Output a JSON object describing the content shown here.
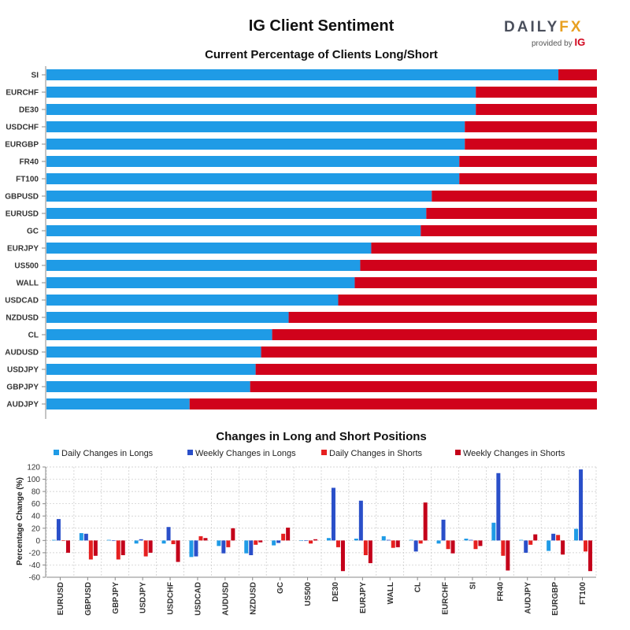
{
  "header": {
    "title": "IG Client Sentiment",
    "brand_main": "DAILY",
    "brand_accent": "FX",
    "brand_provided": "provided by",
    "brand_ig": "IG"
  },
  "colors": {
    "long": "#1f9be6",
    "short": "#d0021b",
    "daily_long": "#1f9be6",
    "weekly_long": "#2a4fc9",
    "daily_short": "#e62020",
    "weekly_short": "#c4001a"
  },
  "chart_data": [
    {
      "type": "bar",
      "orientation": "horizontal-stacked",
      "title": "Current Percentage of Clients Long/Short",
      "categories": [
        "SI",
        "EURCHF",
        "DE30",
        "USDCHF",
        "EURGBP",
        "FR40",
        "FT100",
        "GBPUSD",
        "EURUSD",
        "GC",
        "EURJPY",
        "US500",
        "WALL",
        "USDCAD",
        "NZDUSD",
        "CL",
        "AUDUSD",
        "USDJPY",
        "GBPJPY",
        "AUDJPY"
      ],
      "series": [
        {
          "name": "Long",
          "values": [
            93,
            78,
            78,
            76,
            76,
            75,
            75,
            70,
            69,
            68,
            59,
            57,
            56,
            53,
            44,
            41,
            39,
            38,
            37,
            26
          ]
        },
        {
          "name": "Short",
          "values": [
            7,
            22,
            22,
            24,
            24,
            25,
            25,
            30,
            31,
            32,
            41,
            43,
            44,
            47,
            56,
            59,
            61,
            62,
            63,
            74
          ]
        }
      ],
      "xlim": [
        0,
        100
      ]
    },
    {
      "type": "bar",
      "title": "Changes in Long and Short Positions",
      "ylabel": "Percentage Change (%)",
      "ylim": [
        -60,
        120
      ],
      "yticks": [
        -60,
        -40,
        -20,
        0,
        20,
        40,
        60,
        80,
        100,
        120
      ],
      "categories": [
        "EURUSD",
        "GBPUSD",
        "GBPJPY",
        "USDJPY",
        "USDCHF",
        "USDCAD",
        "AUDUSD",
        "NZDUSD",
        "GC",
        "US500",
        "DE30",
        "EURJPY",
        "WALL",
        "CL",
        "EURCHF",
        "SI",
        "FR40",
        "AUDJPY",
        "EURGBP",
        "FT100"
      ],
      "series": [
        {
          "name": "Daily Changes in Longs",
          "values": [
            1,
            12,
            1,
            -5,
            -5,
            -27,
            -9,
            -21,
            -8,
            0,
            4,
            3,
            7,
            1,
            -5,
            3,
            29,
            1,
            -17,
            19
          ]
        },
        {
          "name": "Weekly Changes in Longs",
          "values": [
            35,
            11,
            0,
            2,
            22,
            -26,
            -21,
            -24,
            -4,
            0,
            86,
            65,
            1,
            -18,
            34,
            1,
            110,
            -20,
            11,
            116
          ]
        },
        {
          "name": "Daily Changes in Shorts",
          "values": [
            0,
            -31,
            -31,
            -26,
            -6,
            7,
            -11,
            -7,
            11,
            -5,
            -11,
            -24,
            -12,
            -5,
            -14,
            -14,
            -25,
            -7,
            9,
            -18
          ]
        },
        {
          "name": "Weekly Changes in Shorts",
          "values": [
            -20,
            -25,
            -24,
            -20,
            -35,
            4,
            20,
            -3,
            21,
            2,
            -50,
            -37,
            -11,
            62,
            -21,
            -9,
            -49,
            10,
            -23,
            -50
          ]
        }
      ]
    }
  ]
}
